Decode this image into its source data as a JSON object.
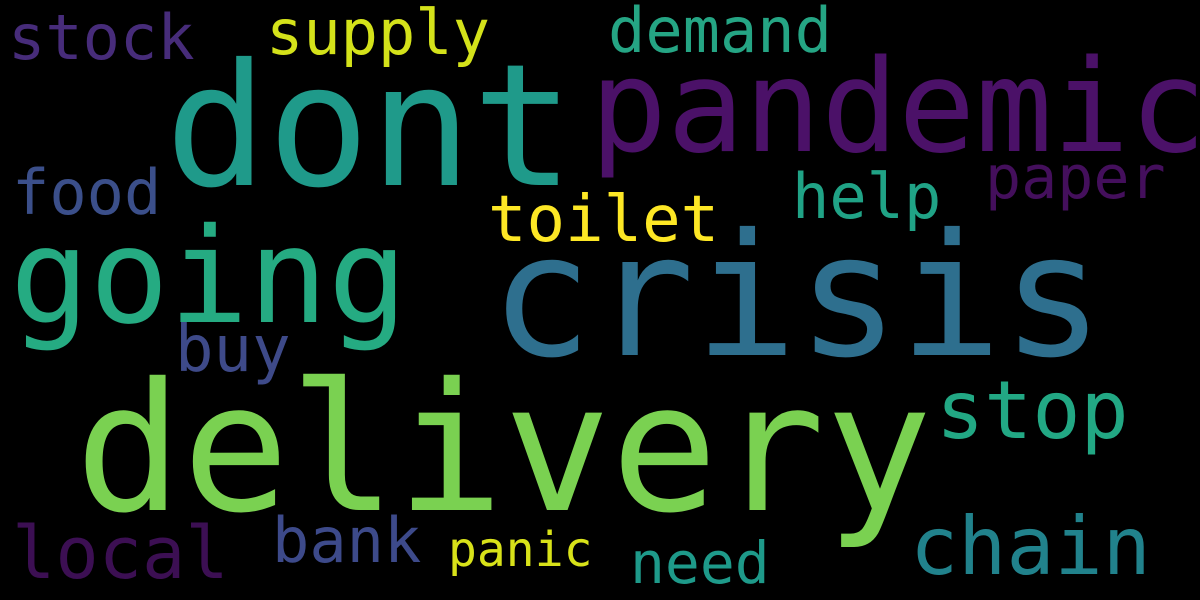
{
  "cloud": {
    "background": "#000000",
    "words": [
      {
        "key": "dont",
        "text": "dont",
        "color": "#1f9a8a"
      },
      {
        "key": "pandemic",
        "text": "pandemic",
        "color": "#4b1168"
      },
      {
        "key": "crisis",
        "text": "crisis",
        "color": "#2e6f8e"
      },
      {
        "key": "delivery",
        "text": "delivery",
        "color": "#7ad151"
      },
      {
        "key": "going",
        "text": "going",
        "color": "#25ab82"
      },
      {
        "key": "stock",
        "text": "stock",
        "color": "#472c7a"
      },
      {
        "key": "supply",
        "text": "supply",
        "color": "#d4e21a"
      },
      {
        "key": "demand",
        "text": "demand",
        "color": "#25a584"
      },
      {
        "key": "food",
        "text": "food",
        "color": "#3b4f8a"
      },
      {
        "key": "help",
        "text": "help",
        "color": "#20a386"
      },
      {
        "key": "paper",
        "text": "paper",
        "color": "#440f5c"
      },
      {
        "key": "toilet",
        "text": "toilet",
        "color": "#fde725"
      },
      {
        "key": "buy",
        "text": "buy",
        "color": "#3e4a89"
      },
      {
        "key": "stop",
        "text": "stop",
        "color": "#22a884"
      },
      {
        "key": "chain",
        "text": "chain",
        "color": "#21828c"
      },
      {
        "key": "local",
        "text": "local",
        "color": "#3c0f53"
      },
      {
        "key": "bank",
        "text": "bank",
        "color": "#3d4a8a"
      },
      {
        "key": "panic",
        "text": "panic",
        "color": "#d8e219"
      },
      {
        "key": "need",
        "text": "need",
        "color": "#1e9a8a"
      }
    ]
  }
}
